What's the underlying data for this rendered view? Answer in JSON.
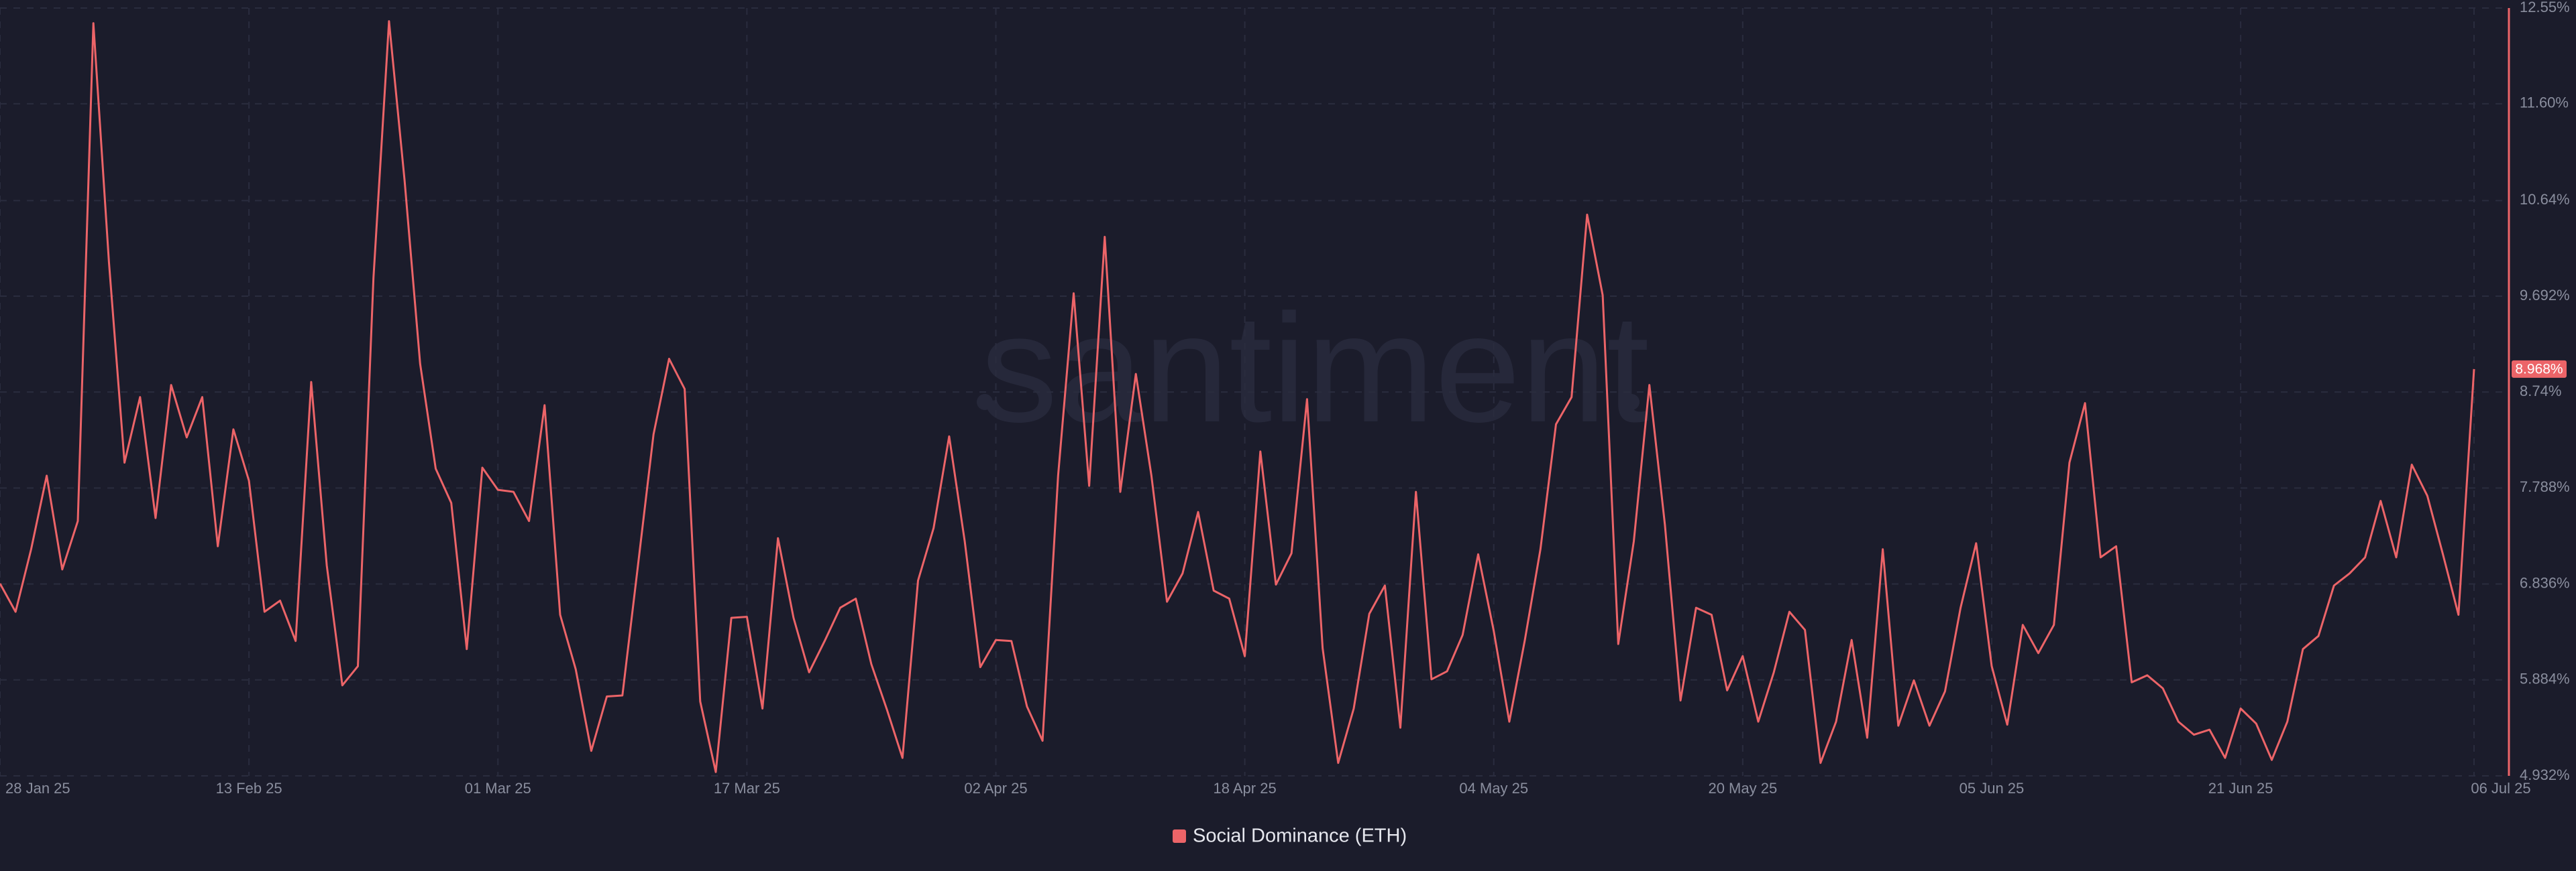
{
  "chart_data": {
    "type": "line",
    "watermark": "santiment",
    "x": [
      0,
      1,
      2,
      3,
      4,
      5,
      6,
      7,
      8,
      9,
      10,
      11,
      12,
      13,
      14,
      15,
      16,
      17,
      18,
      19,
      20,
      21,
      22,
      23,
      24,
      25,
      26,
      27,
      28,
      29,
      30,
      31,
      32,
      33,
      34,
      35,
      36,
      37,
      38,
      39,
      40,
      41,
      42,
      43,
      44,
      45,
      46,
      47,
      48,
      49,
      50,
      51,
      52,
      53,
      54,
      55,
      56,
      57,
      58,
      59,
      60,
      61,
      62,
      63,
      64,
      65,
      66,
      67,
      68,
      69,
      70,
      71,
      72,
      73,
      74,
      75,
      76,
      77,
      78,
      79,
      80,
      81,
      82,
      83,
      84,
      85,
      86,
      87,
      88,
      89,
      90,
      91,
      92,
      93,
      94,
      95,
      96,
      97,
      98,
      99,
      100,
      101,
      102,
      103,
      104,
      105,
      106,
      107,
      108,
      109,
      110,
      111,
      112,
      113,
      114,
      115,
      116,
      117,
      118,
      119,
      120,
      121,
      122,
      123,
      124,
      125,
      126,
      127,
      128,
      129,
      130,
      131,
      132,
      133,
      134,
      135,
      136,
      137,
      138,
      139,
      140,
      141,
      142,
      143,
      144,
      145,
      146,
      147,
      148,
      149,
      150,
      151,
      152,
      153,
      154,
      155,
      156,
      157,
      158,
      159
    ],
    "series": [
      {
        "name": "Social Dominance (ETH)",
        "color": "#ec6468",
        "values": [
          6.84,
          6.56,
          7.18,
          7.91,
          6.98,
          7.46,
          12.4,
          10.03,
          8.04,
          8.69,
          7.49,
          8.81,
          8.29,
          8.69,
          7.21,
          8.37,
          7.86,
          6.56,
          6.67,
          6.27,
          8.84,
          7.02,
          5.83,
          6.02,
          9.87,
          12.42,
          10.84,
          9.02,
          7.98,
          7.64,
          6.19,
          7.99,
          7.77,
          7.75,
          7.46,
          8.61,
          6.53,
          5.99,
          5.18,
          5.72,
          5.73,
          7.02,
          8.32,
          9.07,
          8.77,
          5.67,
          4.97,
          6.5,
          6.51,
          5.6,
          7.29,
          6.5,
          5.96,
          6.27,
          6.6,
          6.69,
          6.04,
          5.59,
          5.11,
          6.87,
          7.39,
          8.3,
          7.26,
          6.01,
          6.28,
          6.27,
          5.62,
          5.28,
          7.91,
          9.72,
          7.81,
          10.28,
          7.75,
          8.92,
          7.91,
          6.66,
          6.94,
          7.55,
          6.77,
          6.69,
          6.12,
          8.15,
          6.83,
          7.14,
          8.67,
          6.2,
          5.06,
          5.6,
          6.54,
          6.82,
          5.41,
          7.75,
          5.89,
          5.97,
          6.33,
          7.13,
          6.37,
          5.47,
          6.28,
          7.18,
          8.42,
          8.69,
          10.5,
          9.7,
          6.24,
          7.26,
          8.81,
          7.42,
          5.68,
          6.6,
          6.53,
          5.78,
          6.12,
          5.47,
          5.96,
          6.56,
          6.38,
          5.06,
          5.47,
          6.28,
          5.31,
          7.18,
          5.43,
          5.88,
          5.43,
          5.77,
          6.6,
          7.24,
          6.02,
          5.44,
          6.43,
          6.15,
          6.43,
          8.04,
          8.63,
          7.1,
          7.21,
          5.86,
          5.93,
          5.8,
          5.47,
          5.34,
          5.39,
          5.11,
          5.6,
          5.45,
          5.09,
          5.47,
          6.19,
          6.32,
          6.82,
          6.94,
          7.1,
          7.66,
          7.1,
          8.02,
          7.71,
          7.13,
          6.53,
          8.968
        ]
      }
    ],
    "annotation": {
      "value": 8.968,
      "label": "8.968%"
    },
    "xlim": [
      0,
      159
    ],
    "xticks": [
      {
        "value": 0,
        "label": "28 Jan 25"
      },
      {
        "value": 16,
        "label": "13 Feb 25"
      },
      {
        "value": 32,
        "label": "01 Mar 25"
      },
      {
        "value": 48,
        "label": "17 Mar 25"
      },
      {
        "value": 64,
        "label": "02 Apr 25"
      },
      {
        "value": 80,
        "label": "18 Apr 25"
      },
      {
        "value": 96,
        "label": "04 May 25"
      },
      {
        "value": 112,
        "label": "20 May 25"
      },
      {
        "value": 128,
        "label": "05 Jun 25"
      },
      {
        "value": 144,
        "label": "21 Jun 25"
      },
      {
        "value": 159,
        "label": "06 Jul 25"
      }
    ],
    "ylim": [
      4.932,
      12.55
    ],
    "yticks": [
      {
        "value": 4.932,
        "label": "4.932%"
      },
      {
        "value": 5.884,
        "label": "5.884%"
      },
      {
        "value": 6.836,
        "label": "6.836%"
      },
      {
        "value": 7.788,
        "label": "7.788%"
      },
      {
        "value": 8.74,
        "label": "8.74%"
      },
      {
        "value": 9.692,
        "label": "9.692%"
      },
      {
        "value": 10.64,
        "label": "10.64%"
      },
      {
        "value": 11.6,
        "label": "11.60%"
      },
      {
        "value": 12.55,
        "label": "12.55%"
      }
    ],
    "grid": true,
    "legend": "bottom"
  }
}
